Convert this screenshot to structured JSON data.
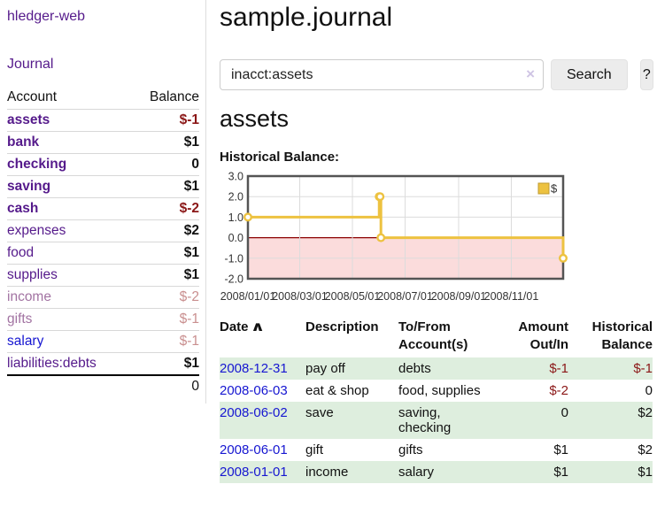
{
  "colors": {
    "link_purple": "#551a8b",
    "link_purple_light": "#a273a2",
    "link_blue": "#1616d1",
    "negative_strong": "#8b1717",
    "negative_light": "#c98f8f",
    "row_green": "#deeede",
    "series_gold": "#edc240"
  },
  "sidebar": {
    "brand": "hledger-web",
    "nav": [
      {
        "label": "Journal"
      }
    ],
    "accounts": {
      "headers": {
        "account": "Account",
        "balance": "Balance"
      },
      "rows": [
        {
          "label": "assets",
          "level": 1,
          "bold": true,
          "label_color": "purple",
          "balance": "$-1",
          "balance_color": "red-strong"
        },
        {
          "label": "bank",
          "level": 2,
          "bold": true,
          "label_color": "purple",
          "balance": "$1",
          "balance_color": "default"
        },
        {
          "label": "checking",
          "level": 3,
          "bold": true,
          "label_color": "purple",
          "balance": "0",
          "balance_color": "default"
        },
        {
          "label": "saving",
          "level": 3,
          "bold": true,
          "label_color": "purple",
          "balance": "$1",
          "balance_color": "default"
        },
        {
          "label": "cash",
          "level": 2,
          "bold": true,
          "label_color": "purple",
          "balance": "$-2",
          "balance_color": "red-strong"
        },
        {
          "label": "expenses",
          "level": 1,
          "bold": false,
          "label_color": "purple",
          "balance": "$2",
          "balance_color": "default"
        },
        {
          "label": "food",
          "level": 2,
          "bold": false,
          "label_color": "purple",
          "balance": "$1",
          "balance_color": "default"
        },
        {
          "label": "supplies",
          "level": 2,
          "bold": false,
          "label_color": "purple",
          "balance": "$1",
          "balance_color": "default"
        },
        {
          "label": "income",
          "level": 1,
          "bold": false,
          "label_color": "purple-light",
          "balance": "$-2",
          "balance_color": "red-light"
        },
        {
          "label": "gifts",
          "level": 2,
          "bold": false,
          "label_color": "purple-light",
          "balance": "$-1",
          "balance_color": "red-light"
        },
        {
          "label": "salary",
          "level": 2,
          "bold": false,
          "label_color": "blue",
          "balance": "$-1",
          "balance_color": "red-light"
        },
        {
          "label": "liabilities:debts",
          "level": 1,
          "bold": false,
          "label_color": "purple",
          "balance": "$1",
          "balance_color": "default"
        }
      ],
      "total": "0"
    }
  },
  "main": {
    "title": "sample.journal",
    "search": {
      "value": "inacct:assets",
      "clear_icon": "×",
      "button": "Search",
      "help_button": "?"
    },
    "account_heading": "assets",
    "chart_heading": "Historical Balance:",
    "register": {
      "headers": [
        "Date",
        "Description",
        "To/From Account(s)",
        "Amount Out/In",
        "Historical Balance"
      ],
      "sort_icon": "∧",
      "rows": [
        {
          "date": "2008-12-31",
          "description": "pay off",
          "accounts": "debts",
          "amount": "$-1",
          "amount_negative": true,
          "balance": "$-1",
          "balance_negative": true
        },
        {
          "date": "2008-06-03",
          "description": "eat & shop",
          "accounts": "food, supplies",
          "amount": "$-2",
          "amount_negative": true,
          "balance": "0",
          "balance_negative": false
        },
        {
          "date": "2008-06-02",
          "description": "save",
          "accounts": "saving, checking",
          "amount": "0",
          "amount_negative": false,
          "balance": "$2",
          "balance_negative": false
        },
        {
          "date": "2008-06-01",
          "description": "gift",
          "accounts": "gifts",
          "amount": "$1",
          "amount_negative": false,
          "balance": "$2",
          "balance_negative": false
        },
        {
          "date": "2008-01-01",
          "description": "income",
          "accounts": "salary",
          "amount": "$1",
          "amount_negative": false,
          "balance": "$1",
          "balance_negative": false
        }
      ]
    }
  },
  "chart_data": {
    "type": "line",
    "step": true,
    "title": "Historical Balance:",
    "x_range": [
      "2008-01-01",
      "2008-12-31"
    ],
    "y_range": [
      -2,
      3
    ],
    "y_ticks": [
      "3.0",
      "2.0",
      "1.0",
      "0.0",
      "-1.0",
      "-2.0"
    ],
    "x_tick_labels": [
      "2008/01/01",
      "2008/03/01",
      "2008/05/01",
      "2008/07/01",
      "2008/09/01",
      "2008/11/01"
    ],
    "x_tick_dates": [
      "2008-01-01",
      "2008-03-01",
      "2008-05-01",
      "2008-07-01",
      "2008-09-01",
      "2008-11-01"
    ],
    "series": [
      {
        "name": "$",
        "color": "#edc240",
        "points": [
          {
            "x": "2008-01-01",
            "y": 1
          },
          {
            "x": "2008-06-01",
            "y": 2
          },
          {
            "x": "2008-06-02",
            "y": 2
          },
          {
            "x": "2008-06-03",
            "y": 0
          },
          {
            "x": "2008-12-31",
            "y": -1
          }
        ]
      }
    ],
    "legend": {
      "label": "$",
      "swatch_color": "#edc240",
      "position": "top-right"
    },
    "negative_fill": "#fbdcdc",
    "zero_line_color": "#8b0000",
    "grid_color": "#dcdcdc",
    "border_color": "#545454"
  }
}
